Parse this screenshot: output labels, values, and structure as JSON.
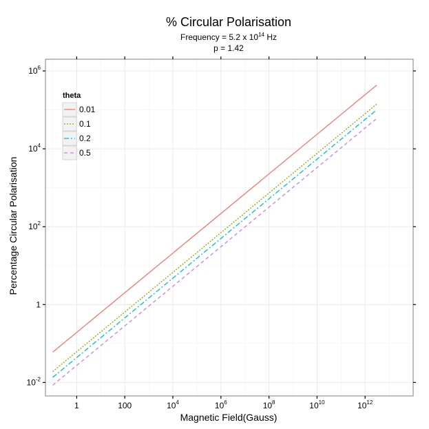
{
  "chart_data": {
    "type": "line",
    "title": "% Circular Polarisation",
    "subtitle_line1": "Frequency = 5.2 x 10",
    "subtitle_line1_exp": "14",
    "subtitle_line1_unit": " Hz",
    "subtitle_line2": "p = 1.42",
    "xlabel": "Magnetic Field(Gauss)",
    "ylabel": "Percentage Circular Polarisation",
    "x_scale": "log",
    "y_scale": "log",
    "xlim": [
      0.05,
      100000000000000.0
    ],
    "ylim": [
      0.0045,
      2000000.0
    ],
    "x_ticks": [
      {
        "value": 1,
        "base": "1",
        "exp": ""
      },
      {
        "value": 100,
        "base": "100",
        "exp": ""
      },
      {
        "value": 10000,
        "base": "10",
        "exp": "4"
      },
      {
        "value": 1000000,
        "base": "10",
        "exp": "6"
      },
      {
        "value": 100000000,
        "base": "10",
        "exp": "8"
      },
      {
        "value": 10000000000,
        "base": "10",
        "exp": "10"
      },
      {
        "value": 1000000000000,
        "base": "10",
        "exp": "12"
      }
    ],
    "y_ticks": [
      {
        "value": 0.01,
        "base": "10",
        "exp": "-2"
      },
      {
        "value": 1,
        "base": "1",
        "exp": ""
      },
      {
        "value": 100,
        "base": "10",
        "exp": "2"
      },
      {
        "value": 10000,
        "base": "10",
        "exp": "4"
      },
      {
        "value": 1000000,
        "base": "10",
        "exp": "6"
      }
    ],
    "grid": true,
    "legend": {
      "title": "theta",
      "placement": "top-left"
    },
    "series": [
      {
        "name": "0.01",
        "color": "#F8766D",
        "dash": "solid",
        "x": [
          0.1,
          3000000000000.0
        ],
        "y": [
          0.06,
          430000
        ]
      },
      {
        "name": "0.1",
        "color": "#7CAE00",
        "dash": "dotted",
        "x": [
          0.1,
          3000000000000.0
        ],
        "y": [
          0.019,
          140000
        ]
      },
      {
        "name": "0.2",
        "color": "#00BFC4",
        "dash": "dashdot",
        "x": [
          0.1,
          3000000000000.0
        ],
        "y": [
          0.0135,
          100000
        ]
      },
      {
        "name": "0.5",
        "color": "#C77CFF",
        "dash": "dashed",
        "x": [
          0.1,
          3000000000000.0
        ],
        "y": [
          0.0085,
          60000
        ]
      }
    ]
  }
}
